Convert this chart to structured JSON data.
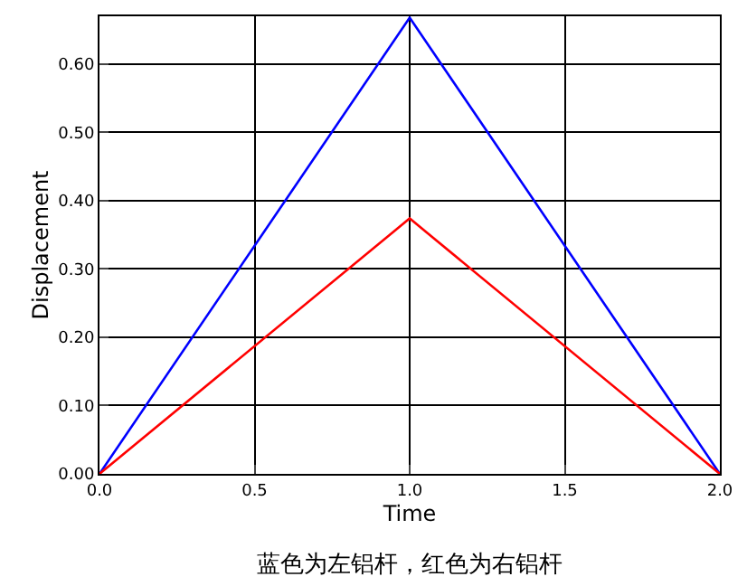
{
  "chart_data": {
    "type": "line",
    "xlabel": "Time",
    "ylabel": "Displacement",
    "annotations": [
      "蓝色为左铝杆，红色为右铝杆"
    ],
    "x": [
      0,
      1,
      2
    ],
    "series": [
      {
        "color": "#0000ff",
        "values": [
          0,
          0.668,
          0
        ]
      },
      {
        "color": "#ff0000",
        "values": [
          0,
          0.374,
          0
        ]
      }
    ],
    "xlim": [
      0,
      2
    ],
    "xticks": [
      {
        "value": 0,
        "label": "0.0"
      },
      {
        "value": 0.5,
        "label": "0.5"
      },
      {
        "value": 1,
        "label": "1.0"
      },
      {
        "value": 1.5,
        "label": "1.5"
      },
      {
        "value": 2,
        "label": "2.0"
      }
    ],
    "ylim": [
      0,
      0.67
    ],
    "yticks": [
      {
        "value": 0,
        "label": "0.00"
      },
      {
        "value": 0.1,
        "label": "0.10"
      },
      {
        "value": 0.2,
        "label": "0.20"
      },
      {
        "value": 0.3,
        "label": "0.30"
      },
      {
        "value": 0.4,
        "label": "0.40"
      },
      {
        "value": 0.5,
        "label": "0.50"
      },
      {
        "value": 0.6,
        "label": "0.60"
      }
    ],
    "grid": true,
    "marker": "none",
    "line_style": "solid"
  }
}
